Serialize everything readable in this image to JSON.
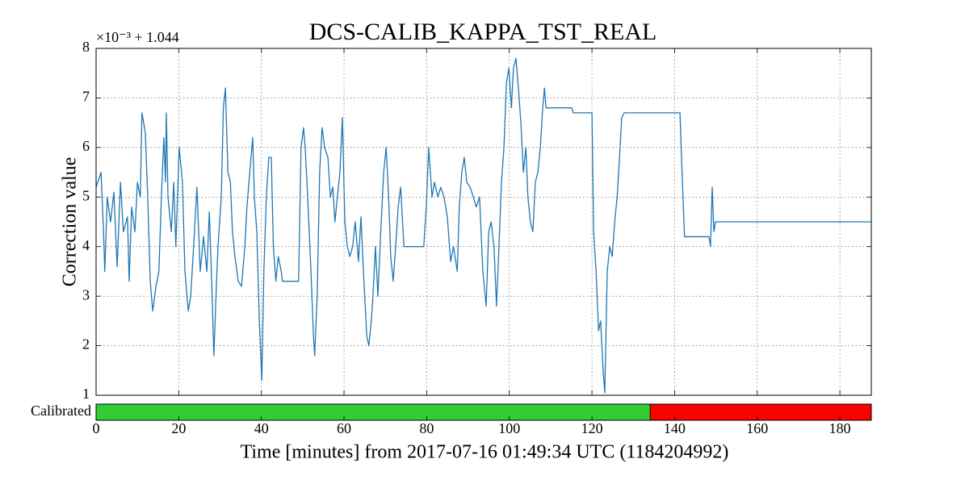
{
  "chart_data": {
    "type": "line",
    "title": "DCS-CALIB_KAPPA_TST_REAL",
    "offset_label": "×10⁻³ + 1.044",
    "y_label": "Correction value",
    "x_label": "Time [minutes] from 2017-07-16 01:49:34 UTC (1184204992)",
    "color": "#1f77b4",
    "grid": true,
    "xlim": [
      0,
      187.6
    ],
    "ylim": [
      1,
      8
    ],
    "xticks": [
      0,
      20,
      40,
      60,
      80,
      100,
      120,
      140,
      160,
      180
    ],
    "yticks": [
      1,
      2,
      3,
      4,
      5,
      6,
      7,
      8
    ],
    "x": [
      0,
      1.2,
      1.8,
      2.1,
      2.7,
      3.5,
      4.3,
      5.1,
      5.9,
      6.6,
      7.6,
      8,
      8.6,
      9.4,
      10,
      10.7,
      11.1,
      11.9,
      12.5,
      13.1,
      13.7,
      14.5,
      15.2,
      15.8,
      16.4,
      16.8,
      17,
      17.4,
      18.2,
      18.8,
      19.3,
      20.1,
      20.9,
      21.5,
      22.3,
      22.9,
      23.6,
      24.4,
      25.2,
      26,
      26.8,
      27.4,
      27.9,
      28.5,
      29.1,
      29.5,
      30.3,
      30.8,
      31.3,
      31.9,
      32.5,
      33,
      33.6,
      34.4,
      35.2,
      36,
      36.5,
      37.3,
      37.9,
      38.3,
      38.9,
      39.5,
      40.1,
      40.6,
      41.2,
      41.8,
      42.4,
      42.9,
      43.5,
      44.1,
      44.8,
      45.1,
      49,
      49.6,
      50.2,
      50.6,
      51.2,
      52,
      52.6,
      52.9,
      53.5,
      54.1,
      54.7,
      55.3,
      56.1,
      56.7,
      57.3,
      57.8,
      58.4,
      59,
      59.6,
      60.2,
      60.8,
      61.4,
      62.1,
      62.7,
      63.5,
      64.1,
      64.7,
      65.5,
      66,
      66.6,
      67,
      67.6,
      68.2,
      69,
      69.6,
      70.2,
      70.8,
      71.3,
      71.9,
      72.5,
      73.1,
      73.7,
      74.5,
      79.3,
      79.9,
      80.5,
      81.3,
      81.9,
      82.7,
      83.4,
      84.2,
      85,
      85.8,
      86.5,
      87.4,
      87.9,
      88.5,
      89.1,
      89.7,
      90.5,
      91.3,
      92,
      92.8,
      93.6,
      94.4,
      95,
      95.6,
      96.3,
      96.9,
      97.5,
      98.1,
      98.7,
      99.3,
      99.9,
      100.5,
      101,
      101.6,
      102.2,
      102.8,
      103.4,
      104,
      104.5,
      105.1,
      105.7,
      106.3,
      106.9,
      107.5,
      108,
      108.5,
      108.9,
      115.1,
      115.5,
      120,
      120.4,
      121,
      121.6,
      122.1,
      122.7,
      123.1,
      123.7,
      124.3,
      124.9,
      125.5,
      126.1,
      126.6,
      127.2,
      127.8,
      141.3,
      141.8,
      142.4,
      148.3,
      148.7,
      149.1,
      149.5,
      149.9,
      187.6
    ],
    "values": [
      5.2,
      5.5,
      4.3,
      3.5,
      5.0,
      4.5,
      5.1,
      3.6,
      5.3,
      4.3,
      4.6,
      3.3,
      4.8,
      4.3,
      5.3,
      5.0,
      6.7,
      6.3,
      5.0,
      3.3,
      2.7,
      3.2,
      3.5,
      5.0,
      6.2,
      5.3,
      6.7,
      5.0,
      4.3,
      5.3,
      4.0,
      6.0,
      5.3,
      3.5,
      2.7,
      3.0,
      4.0,
      5.2,
      3.5,
      4.2,
      3.5,
      4.7,
      3.5,
      1.8,
      3.2,
      4.0,
      5.0,
      6.8,
      7.2,
      5.5,
      5.3,
      4.3,
      3.8,
      3.3,
      3.2,
      4.0,
      4.8,
      5.6,
      6.2,
      5.0,
      4.3,
      2.5,
      1.3,
      3.5,
      5.0,
      5.8,
      5.8,
      4.0,
      3.3,
      3.8,
      3.5,
      3.3,
      3.3,
      6.0,
      6.4,
      6.0,
      5.0,
      3.5,
      2.2,
      1.8,
      3.0,
      5.5,
      6.4,
      6.0,
      5.8,
      5.0,
      5.2,
      4.5,
      5.0,
      5.5,
      6.6,
      4.5,
      4.0,
      3.8,
      4.0,
      4.5,
      3.7,
      4.6,
      3.5,
      2.2,
      2.0,
      2.5,
      3.0,
      4.0,
      3.0,
      4.5,
      5.5,
      6.0,
      5.0,
      3.8,
      3.3,
      4.0,
      4.8,
      5.2,
      4.0,
      4.0,
      4.8,
      6.0,
      5.0,
      5.3,
      5.0,
      5.2,
      5.0,
      4.6,
      3.7,
      4.0,
      3.5,
      4.8,
      5.5,
      5.8,
      5.3,
      5.2,
      5.0,
      4.8,
      5.0,
      3.5,
      2.8,
      4.3,
      4.5,
      4.0,
      2.8,
      4.0,
      5.3,
      6.0,
      7.3,
      7.6,
      6.8,
      7.6,
      7.8,
      7.2,
      6.5,
      5.5,
      6.0,
      5.0,
      4.5,
      4.3,
      5.3,
      5.5,
      6.0,
      6.7,
      7.2,
      6.8,
      6.8,
      6.7,
      6.7,
      4.3,
      3.5,
      2.3,
      2.5,
      1.5,
      1.05,
      3.5,
      4.0,
      3.8,
      4.5,
      5.0,
      5.7,
      6.6,
      6.7,
      6.7,
      5.5,
      4.2,
      4.2,
      4.0,
      5.2,
      4.3,
      4.5,
      4.5
    ],
    "state_bar": {
      "label": "Calibrated",
      "segments": [
        {
          "start": 0,
          "end": 134.1,
          "color": "#33cc33"
        },
        {
          "start": 134.1,
          "end": 187.6,
          "color": "#ff0000"
        }
      ]
    }
  }
}
